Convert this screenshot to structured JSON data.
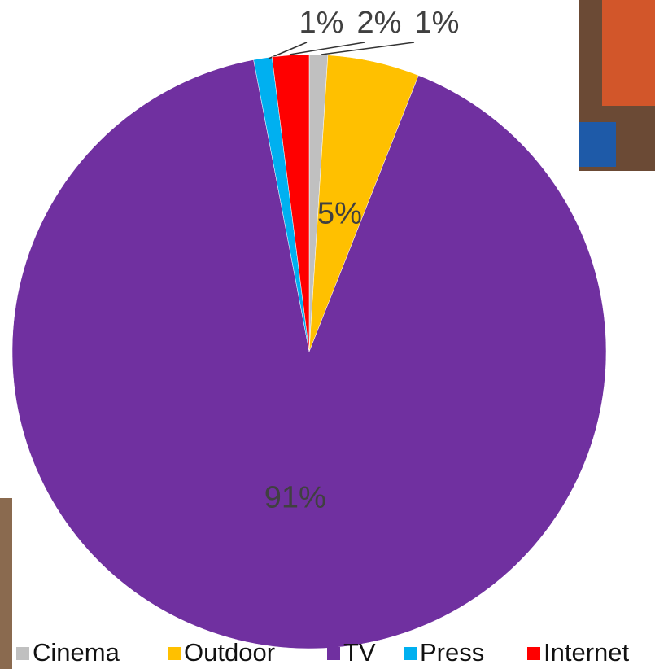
{
  "chart_data": {
    "type": "pie",
    "categories": [
      "Cinema",
      "Outdoor",
      "TV",
      "Press",
      "Internet"
    ],
    "values": [
      1,
      5,
      91,
      1,
      2
    ],
    "value_labels": [
      "1%",
      "5%",
      "91%",
      "1%",
      "2%"
    ],
    "colors": [
      "#c0c0c0",
      "#ffc000",
      "#7030a0",
      "#00b0f0",
      "#ff0000"
    ],
    "legend": "bottom"
  }
}
